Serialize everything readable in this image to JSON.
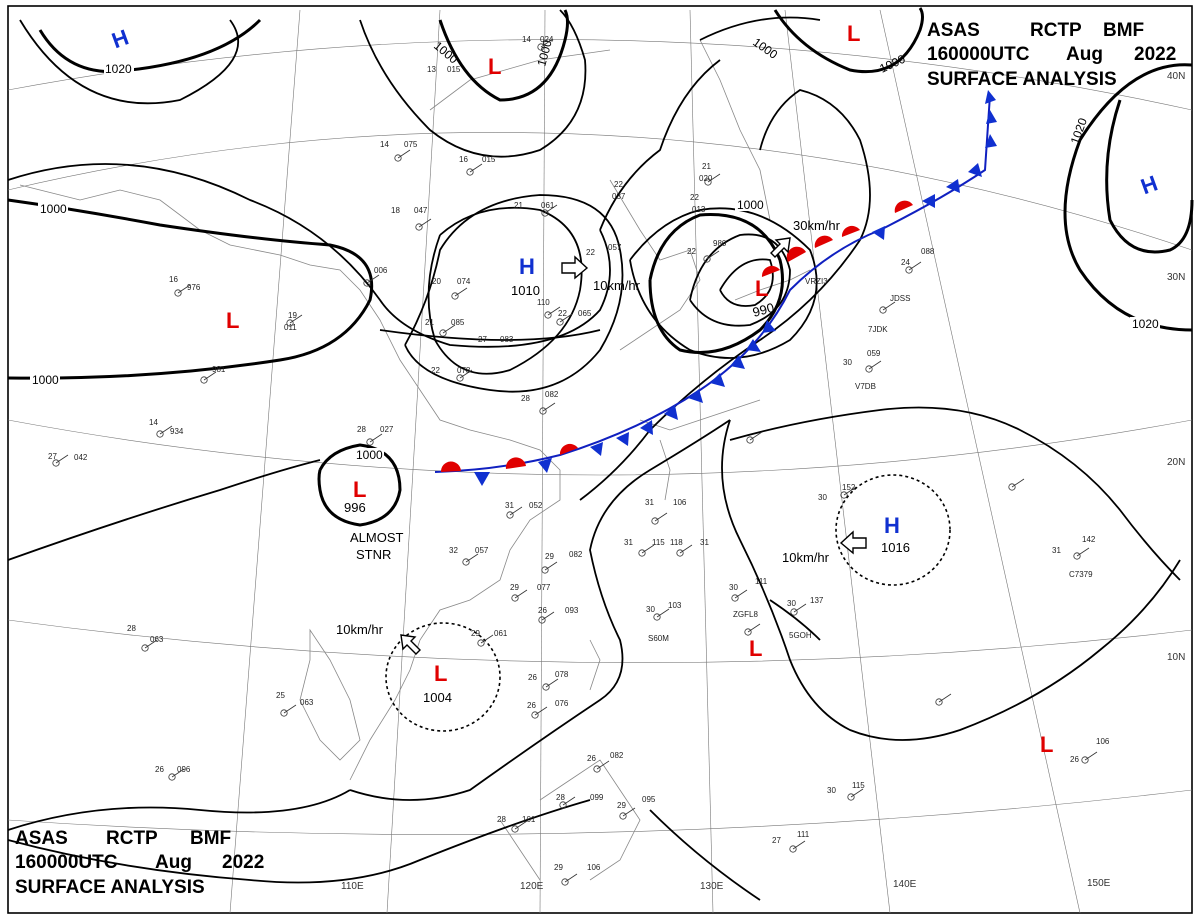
{
  "header": {
    "line1": [
      "ASAS",
      "RCTP",
      "BMF"
    ],
    "line2": [
      "160000UTC",
      "Aug",
      "2022"
    ],
    "line3": "SURFACE ANALYSIS"
  },
  "axes": {
    "longitudes": [
      "110E",
      "120E",
      "130E",
      "140E",
      "150E"
    ],
    "latitudes": [
      "40N",
      "30N",
      "20N",
      "10N"
    ]
  },
  "isobars": [
    "1020",
    "1000",
    "1000",
    "1000",
    "1000",
    "1000",
    "1000",
    "1020",
    "1020",
    "1000",
    "1000"
  ],
  "pressure_centers": [
    {
      "type": "H",
      "color": "#1030d0",
      "value": ""
    },
    {
      "type": "L",
      "color": "#e00000",
      "value": ""
    },
    {
      "type": "L",
      "color": "#e00000",
      "value": ""
    },
    {
      "type": "H",
      "color": "#1030d0",
      "value": "1010"
    },
    {
      "type": "L",
      "color": "#e00000",
      "value": "990"
    },
    {
      "type": "L",
      "color": "#e00000",
      "value": ""
    },
    {
      "type": "L",
      "color": "#e00000",
      "value": "996"
    },
    {
      "type": "H",
      "color": "#1030d0",
      "value": "1016"
    },
    {
      "type": "L",
      "color": "#e00000",
      "value": "1004"
    },
    {
      "type": "L",
      "color": "#e00000",
      "value": ""
    },
    {
      "type": "L",
      "color": "#e00000",
      "value": ""
    },
    {
      "type": "H",
      "color": "#1030d0",
      "value": ""
    }
  ],
  "motion_labels": [
    "10km/hr",
    "30km/hr",
    "10km/hr",
    "10km/hr"
  ],
  "annotations": {
    "almost": "ALMOST",
    "stnr": "STNR"
  },
  "station_labels": [
    "14",
    "024",
    "13",
    "015",
    "14",
    "075",
    "16",
    "015",
    "18",
    "047",
    "21",
    "061",
    "22",
    "037",
    "21",
    "020",
    "22",
    "013",
    "22",
    "980",
    "19",
    "011",
    "16",
    "976",
    "20",
    "074",
    "21",
    "085",
    "22",
    "057",
    "22",
    "065",
    "27",
    "083",
    "22",
    "078",
    "24",
    "088",
    "28",
    "027",
    "14",
    "934",
    "27",
    "042",
    "28",
    "082",
    "31",
    "052",
    "32",
    "057",
    "29",
    "082",
    "31",
    "106",
    "31",
    "115",
    "31",
    "118",
    "30",
    "152",
    "29",
    "077",
    "26",
    "093",
    "30",
    "103",
    "30",
    "111",
    "30",
    "137",
    "28",
    "063",
    "25",
    "063",
    "29",
    "061",
    "26",
    "078",
    "26",
    "096",
    "26",
    "076",
    "26",
    "082",
    "28",
    "099",
    "28",
    "101",
    "29",
    "095",
    "29",
    "106",
    "30",
    "115",
    "27",
    "111",
    "31",
    "142",
    "26",
    "106",
    "30",
    "059",
    "981",
    "006",
    "110",
    "ZGFL8",
    "S60M",
    "5GOH",
    "JDSS",
    "C7379",
    "V7DB",
    "7JDK",
    "VRZI3"
  ]
}
